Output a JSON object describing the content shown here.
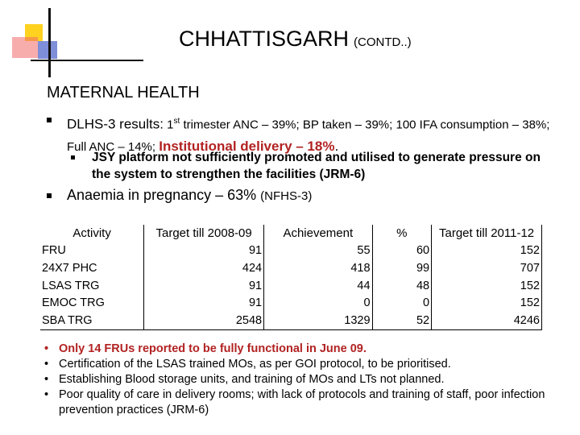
{
  "title": {
    "main": "CHHATTISGARH",
    "suffix": "(CONTD..)"
  },
  "section_title": "MATERNAL HEALTH",
  "point1": {
    "lead": "DLHS-3 results",
    "colon": ":",
    "part1": " 1",
    "sup": "st",
    "part2": " trimester ANC – 39%; BP taken – 39%; 100 IFA consumption – 38%; Full ANC – 14%; ",
    "highlight": "Institutional delivery – 18%",
    "end": ".",
    "sub": "JSY platform not sufficiently promoted and utilised to generate pressure on the system to strengthen the facilities (JRM-6)"
  },
  "point2": {
    "text": "Anaemia in pregnancy – 63%",
    "source": "(NFHS-3)"
  },
  "table": {
    "headers": [
      "Activity",
      "Target till 2008-09",
      "Achievement",
      "%",
      "Target till 2011-12"
    ],
    "rows": [
      [
        "FRU",
        "91",
        "55",
        "60",
        "152"
      ],
      [
        "24X7 PHC",
        "424",
        "418",
        "99",
        "707"
      ],
      [
        "LSAS TRG",
        "91",
        "44",
        "48",
        "152"
      ],
      [
        "EMOC TRG",
        "91",
        "0",
        "0",
        "152"
      ],
      [
        "SBA TRG",
        "2548",
        "1329",
        "52",
        "4246"
      ]
    ]
  },
  "notes": [
    "Only 14 FRUs reported to be fully functional in June 09.",
    "Certification of the LSAS trained MOs, as per GOI protocol, to be prioritised.",
    "Establishing Blood storage units, and training of MOs and LTs not planned.",
    "Poor quality of care in delivery rooms; with lack of protocols and training of staff, poor infection prevention practices (JRM-6)"
  ],
  "colors": {
    "highlight": "#b22222",
    "yellow": "#ffd21f",
    "red": "#f26a6a",
    "blue": "#7f8ed9"
  }
}
